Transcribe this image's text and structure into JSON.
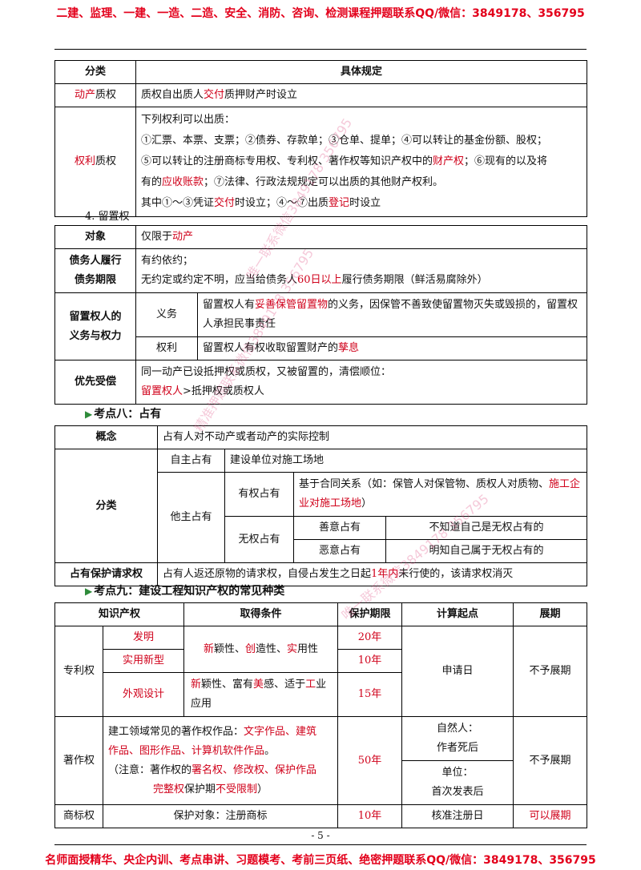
{
  "header_banner": "二建、监理、一建、一造、二造、安全、消防、咨询、检测课程押题联系QQ/微信：3849178、356795",
  "footer_banner": "名师面授精华、央企内训、考点串讲、习题模考、考前三页纸、绝密押题联系QQ/微信：3849178、356795",
  "page_number": "- 5 -",
  "watermarks": [
    "唯一联系微信3849178 356795",
    "精准押题联系微信3849178 356795",
    "唯一联系微信3849178 356795"
  ],
  "pledge_table": {
    "headers": [
      "分类",
      "具体规定"
    ],
    "movable": {
      "label_parts": [
        "动产",
        "质权"
      ],
      "text_parts": [
        "质权自出质人",
        "交付",
        "质押财产时设立"
      ]
    },
    "rights": {
      "label_parts": [
        "权利",
        "质权"
      ],
      "line1": "下列权利可以出质：",
      "line2": "①汇票、本票、支票；②债券、存款单；③仓单、提单；④可以转让的基金份额、股权；",
      "line3_parts": [
        "⑤可以转让的注册商标专用权、专利权、著作权等知识产权中的",
        "财产权",
        "；⑥现有的以及将"
      ],
      "line4_parts": [
        "有的",
        "应收账款",
        "；⑦法律、行政法规规定可以出质的其他财产权利。"
      ],
      "line5_parts": [
        "其中①～③凭证",
        "交付",
        "时设立；④～⑦出质",
        "登记",
        "时设立"
      ]
    }
  },
  "lien": {
    "title": "4. 留置权",
    "object_label": "对象",
    "object_parts": [
      "仅限于",
      "动产"
    ],
    "debt_label_1": "债务人履行",
    "debt_label_2": "债务期限",
    "debt_line1": "有约依约；",
    "debt_line2_parts": [
      "无约定或约定不明，应当给债务人",
      "60日以上",
      "履行债务期限（鲜活易腐除外）"
    ],
    "duty_power_label_1": "留置权人的",
    "duty_power_label_2": "义务与权力",
    "duty_label": "义务",
    "duty_text_parts": [
      "留置权人有",
      "妥善保管留置物",
      "的义务，因保管不善致使留置物灭失或毁损的，",
      "留置权人承担民事责任"
    ],
    "power_label": "权利",
    "power_text_parts": [
      "留置权人有权收取留置财产的",
      "孳息"
    ],
    "priority_label": "优先受偿",
    "priority_line1": "同一动产已设抵押权或质权，又被留置的，清偿顺位：",
    "priority_line2_parts": [
      "留置权人",
      ">抵押权或质权人"
    ]
  },
  "possession": {
    "section_title": "考点八：占有",
    "concept_label": "概念",
    "concept_text": "占有人对不动产或者动产的实际控制",
    "classification_label": "分类",
    "self_label": "自主占有",
    "self_text": "建设单位对施工场地",
    "other_label": "他主占有",
    "rightful_label": "有权占有",
    "rightful_text_parts": [
      "基于合同关系（如：保管人对保管物、质权人对质物、",
      "施工企业对施工场地",
      "）"
    ],
    "unrightful_label": "无权占有",
    "good_faith_label": "善意占有",
    "good_faith_text": "不知道自己是无权占有的",
    "bad_faith_label": "恶意占有",
    "bad_faith_text": "明知自己属于无权占有的",
    "protection_label": "占有保护请求权",
    "protection_text_parts": [
      "占有人返还原物的请求权，自侵占发生之日起",
      "1年内",
      "未行使的，该请求权消灭"
    ]
  },
  "ip": {
    "section_title": "考点九：建设工程知识产权的常见种类",
    "headers": [
      "知识产权",
      "取得条件",
      "保护期限",
      "计算起点",
      "展期"
    ],
    "patent_label": "专利权",
    "invention": "发明",
    "utility": "实用新型",
    "design": "外观设计",
    "inv_cond_parts": [
      "新",
      "颖性、",
      "创",
      "造性、",
      "实",
      "用性"
    ],
    "design_cond_parts": [
      "新",
      "颖性、富有",
      "美",
      "感、适于",
      "工",
      "业应用"
    ],
    "invention_term": "20年",
    "utility_term": "10年",
    "design_term": "15年",
    "patent_start": "申请日",
    "patent_ext": "不予展期",
    "copyright_label": "著作权",
    "copyright_line1_parts": [
      "建工领域常见的著作权作品：",
      "文字作品、建筑"
    ],
    "copyright_line2_parts": [
      "作品、图形作品、计算机软件作品",
      "。"
    ],
    "copyright_line3_parts": [
      "（注意：著作权的",
      "署名权、修改权、保护作品"
    ],
    "copyright_line4_parts": [
      "完整权",
      "保护期",
      "不受限制",
      "）"
    ],
    "copyright_term": "50年",
    "natural_person": "自然人：",
    "natural_start": "作者死后",
    "entity": "单位：",
    "entity_start": "首次发表后",
    "copyright_ext": "不予展期",
    "trademark_label": "商标权",
    "trademark_cond": "保护对象：注册商标",
    "trademark_term": "10年",
    "trademark_start": "核准注册日",
    "trademark_ext": "可以展期"
  }
}
